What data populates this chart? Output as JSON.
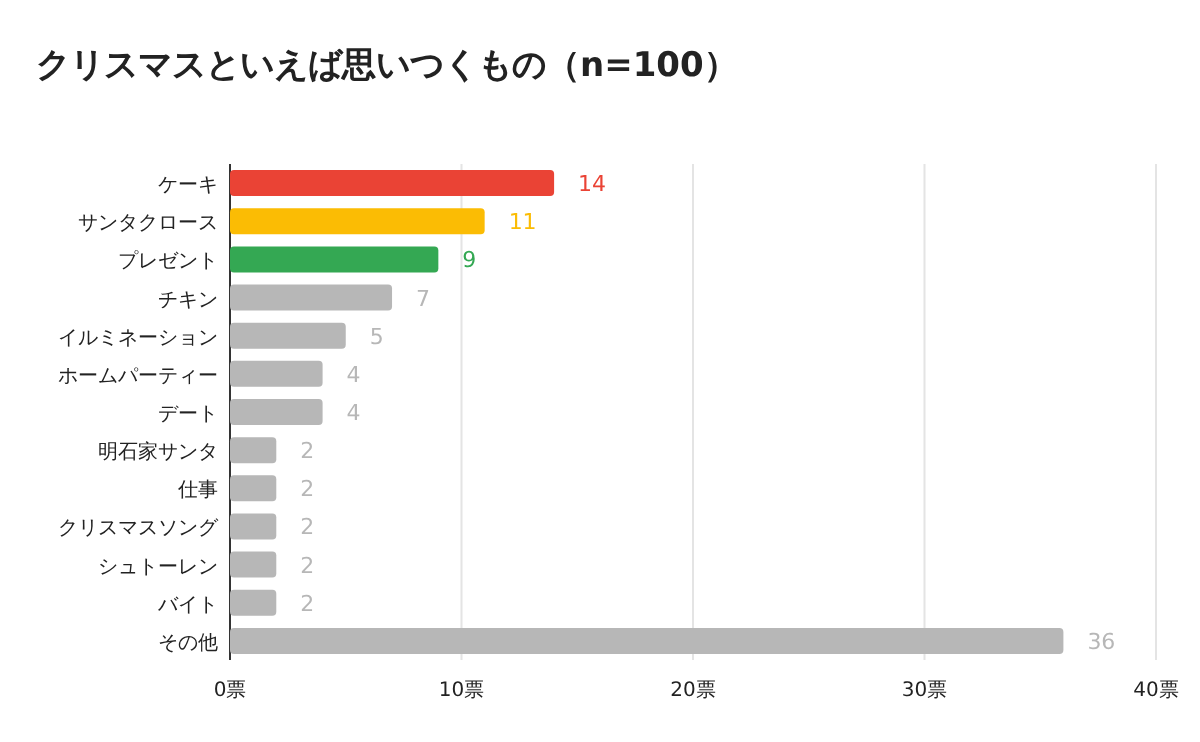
{
  "chart_data": {
    "type": "bar",
    "orientation": "horizontal",
    "title": "クリスマスといえば思いつくもの（n=100）",
    "categories": [
      "ケーキ",
      "サンタクロース",
      "プレゼント",
      "チキン",
      "イルミネーション",
      "ホームパーティー",
      "デート",
      "明石家サンタ",
      "仕事",
      "クリスマスソング",
      "シュトーレン",
      "バイト",
      "その他"
    ],
    "values": [
      14,
      11,
      9,
      7,
      5,
      4,
      4,
      2,
      2,
      2,
      2,
      2,
      36
    ],
    "colors": [
      "#ea4335",
      "#fbbc04",
      "#34a853",
      "#b7b7b7",
      "#b7b7b7",
      "#b7b7b7",
      "#b7b7b7",
      "#b7b7b7",
      "#b7b7b7",
      "#b7b7b7",
      "#b7b7b7",
      "#b7b7b7",
      "#b7b7b7"
    ],
    "xlim": [
      0,
      40
    ],
    "xticks": [
      {
        "value": 0,
        "label": "0票"
      },
      {
        "value": 10,
        "label": "10票"
      },
      {
        "value": 20,
        "label": "20票"
      },
      {
        "value": 30,
        "label": "30票"
      },
      {
        "value": 40,
        "label": "40票"
      }
    ],
    "grid": "x",
    "data_labels": true
  }
}
